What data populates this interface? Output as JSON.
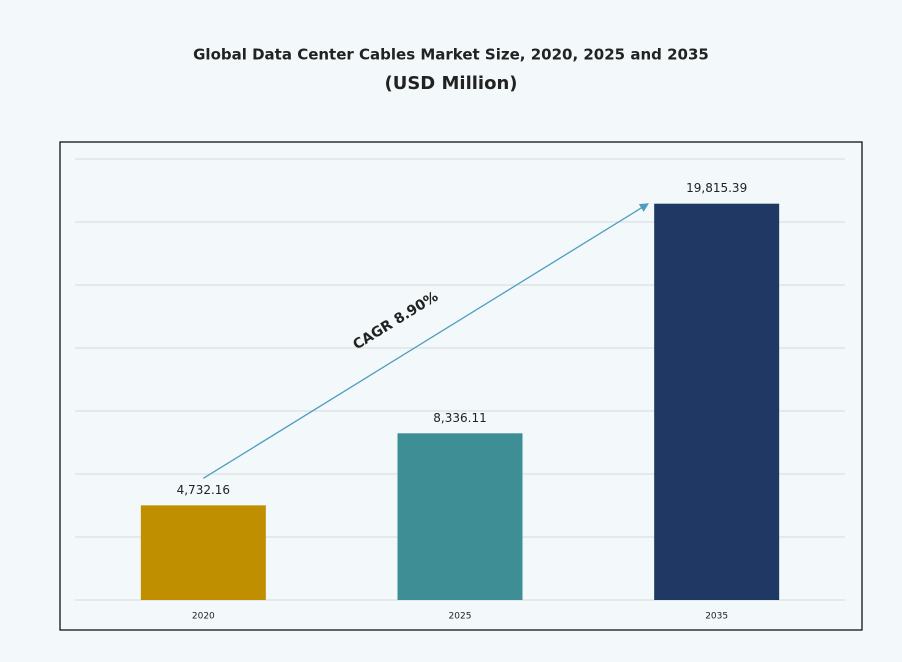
{
  "chart_data": {
    "type": "bar",
    "title": "Global Data Center Cables Market Size, 2020, 2025 and 2035",
    "subtitle": "(USD Million)",
    "categories": [
      "2020",
      "2025",
      "2035"
    ],
    "values": [
      4732.16,
      8336.11,
      19815.39
    ],
    "value_labels": [
      "4,732.16",
      "8,336.11",
      "19,815.39"
    ],
    "colors": [
      "#bf8f00",
      "#3e8e96",
      "#1f3864"
    ],
    "annotation": "CAGR 8.90%",
    "ylim": [
      0,
      22050
    ],
    "yticks": [
      0,
      3150,
      6300,
      9450,
      12600,
      15750,
      18900,
      22050
    ],
    "grid": true
  }
}
